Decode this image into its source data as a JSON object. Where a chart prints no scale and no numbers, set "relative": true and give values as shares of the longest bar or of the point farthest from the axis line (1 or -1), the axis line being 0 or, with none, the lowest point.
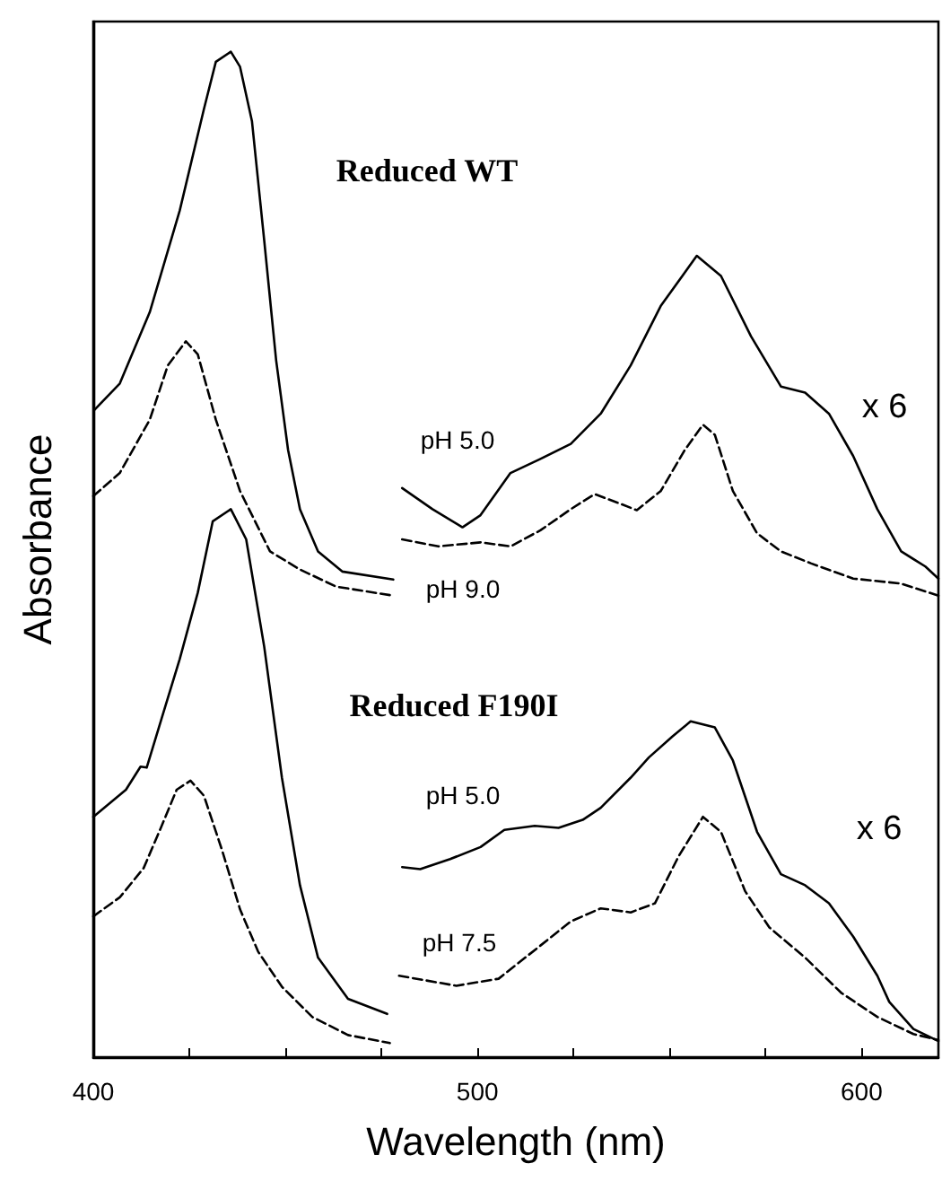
{
  "chart_data": {
    "type": "line",
    "relative": true,
    "xlabel": "Wavelength (nm)",
    "ylabel": "Absorbance",
    "xlim": [
      400,
      620
    ],
    "xticks": [
      400,
      {
        "value": 425,
        "label": null
      },
      {
        "value": 450,
        "label": null
      },
      {
        "value": 475,
        "label": null
      },
      500,
      {
        "value": 525,
        "label": null
      },
      {
        "value": 550,
        "label": null
      },
      {
        "value": 575,
        "label": null
      },
      600
    ],
    "tick_labels": "x",
    "grid": false,
    "marker": "none",
    "series": [
      {
        "color": "#000000",
        "line_style": "solid",
        "x": [
          400.1,
          406.9,
          414.7,
          422.5,
          428.8,
          431.9,
          435.8,
          438.2,
          441.3,
          444.5,
          447.6,
          450.7,
          453.8,
          458.5,
          464.8,
          478.1
        ],
        "values": [
          0.643,
          0.67,
          0.741,
          0.842,
          0.943,
          0.99,
          1.0,
          0.985,
          0.931,
          0.812,
          0.693,
          0.604,
          0.545,
          0.503,
          0.483,
          0.475
        ]
      },
      {
        "color": "#000000",
        "line_style": "dashed",
        "x": [
          400,
          406.9,
          414.7,
          419.4,
          424.1,
          427.2,
          431.9,
          438.2,
          446,
          453.8,
          463.2,
          478.1
        ],
        "values": [
          0.558,
          0.581,
          0.634,
          0.688,
          0.712,
          0.699,
          0.634,
          0.563,
          0.503,
          0.485,
          0.468,
          0.459
        ]
      },
      {
        "color": "#000000",
        "line_style": "solid",
        "x": [
          480.4,
          488.3,
          496.1,
          500.8,
          508.6,
          516.4,
          524.3,
          532.1,
          539.9,
          547.7,
          557.1,
          563.4,
          571.2,
          579,
          585.3,
          591.5,
          597.8,
          604.1,
          610.3,
          616.6,
          620
        ],
        "values": [
          0.566,
          0.545,
          0.527,
          0.539,
          0.581,
          0.595,
          0.61,
          0.64,
          0.688,
          0.747,
          0.797,
          0.777,
          0.717,
          0.667,
          0.661,
          0.64,
          0.598,
          0.545,
          0.503,
          0.488,
          0.476
        ]
      },
      {
        "color": "#000000",
        "line_style": "dashed",
        "x": [
          480.4,
          489.8,
          500.8,
          508.6,
          516.4,
          524.3,
          530.5,
          536.8,
          541.5,
          547.7,
          554,
          558.7,
          561.8,
          566.5,
          572.8,
          579,
          586.9,
          597.8,
          610.3,
          620
        ],
        "values": [
          0.515,
          0.508,
          0.512,
          0.508,
          0.524,
          0.545,
          0.56,
          0.551,
          0.544,
          0.563,
          0.604,
          0.629,
          0.619,
          0.563,
          0.521,
          0.503,
          0.491,
          0.476,
          0.471,
          0.459
        ]
      },
      {
        "color": "#000000",
        "line_style": "solid",
        "x": [
          400,
          408.5,
          412.3,
          413.9,
          417.8,
          422.5,
          427.2,
          431.1,
          435.8,
          439.8,
          444.5,
          449.1,
          453.8,
          458.5,
          466.3,
          476.5
        ],
        "values": [
          0.239,
          0.266,
          0.289,
          0.288,
          0.337,
          0.396,
          0.462,
          0.533,
          0.545,
          0.515,
          0.408,
          0.278,
          0.171,
          0.099,
          0.058,
          0.043
        ]
      },
      {
        "color": "#000000",
        "line_style": "dashed",
        "x": [
          400,
          406.9,
          413.1,
          417.8,
          421.7,
          425.3,
          428.8,
          433.5,
          438.2,
          442.9,
          449.1,
          457,
          466.3,
          477.2
        ],
        "values": [
          0.14,
          0.159,
          0.188,
          0.23,
          0.266,
          0.275,
          0.26,
          0.206,
          0.147,
          0.105,
          0.07,
          0.04,
          0.022,
          0.014
        ]
      },
      {
        "color": "#000000",
        "line_style": "solid",
        "x": [
          480.4,
          485.1,
          492.9,
          500.8,
          507,
          514.9,
          521.1,
          527.4,
          532.1,
          539.9,
          544.6,
          550.8,
          555.5,
          561.8,
          566.5,
          572.8,
          579,
          585.3,
          591.5,
          597.8,
          604.1,
          607.2,
          613.5,
          620
        ],
        "values": [
          0.189,
          0.187,
          0.197,
          0.209,
          0.226,
          0.23,
          0.228,
          0.236,
          0.248,
          0.278,
          0.298,
          0.319,
          0.334,
          0.328,
          0.295,
          0.224,
          0.182,
          0.171,
          0.153,
          0.12,
          0.081,
          0.055,
          0.028,
          0.016
        ]
      },
      {
        "color": "#000000",
        "line_style": "dashed",
        "x": [
          479.6,
          494.5,
          505.5,
          516.4,
          524.3,
          532.1,
          539.9,
          546.2,
          552.4,
          558.7,
          563.4,
          569.7,
          576,
          585.3,
          594.7,
          604.1,
          613.5,
          620
        ],
        "values": [
          0.081,
          0.071,
          0.078,
          0.111,
          0.135,
          0.148,
          0.144,
          0.153,
          0.2,
          0.239,
          0.224,
          0.165,
          0.129,
          0.099,
          0.064,
          0.04,
          0.023,
          0.017
        ]
      }
    ],
    "annotations": [
      "Reduced WT",
      "Reduced F190I",
      "pH 5.0",
      "pH 9.0",
      "x 6",
      "pH 5.0",
      "x 6",
      "pH 7.5"
    ]
  }
}
